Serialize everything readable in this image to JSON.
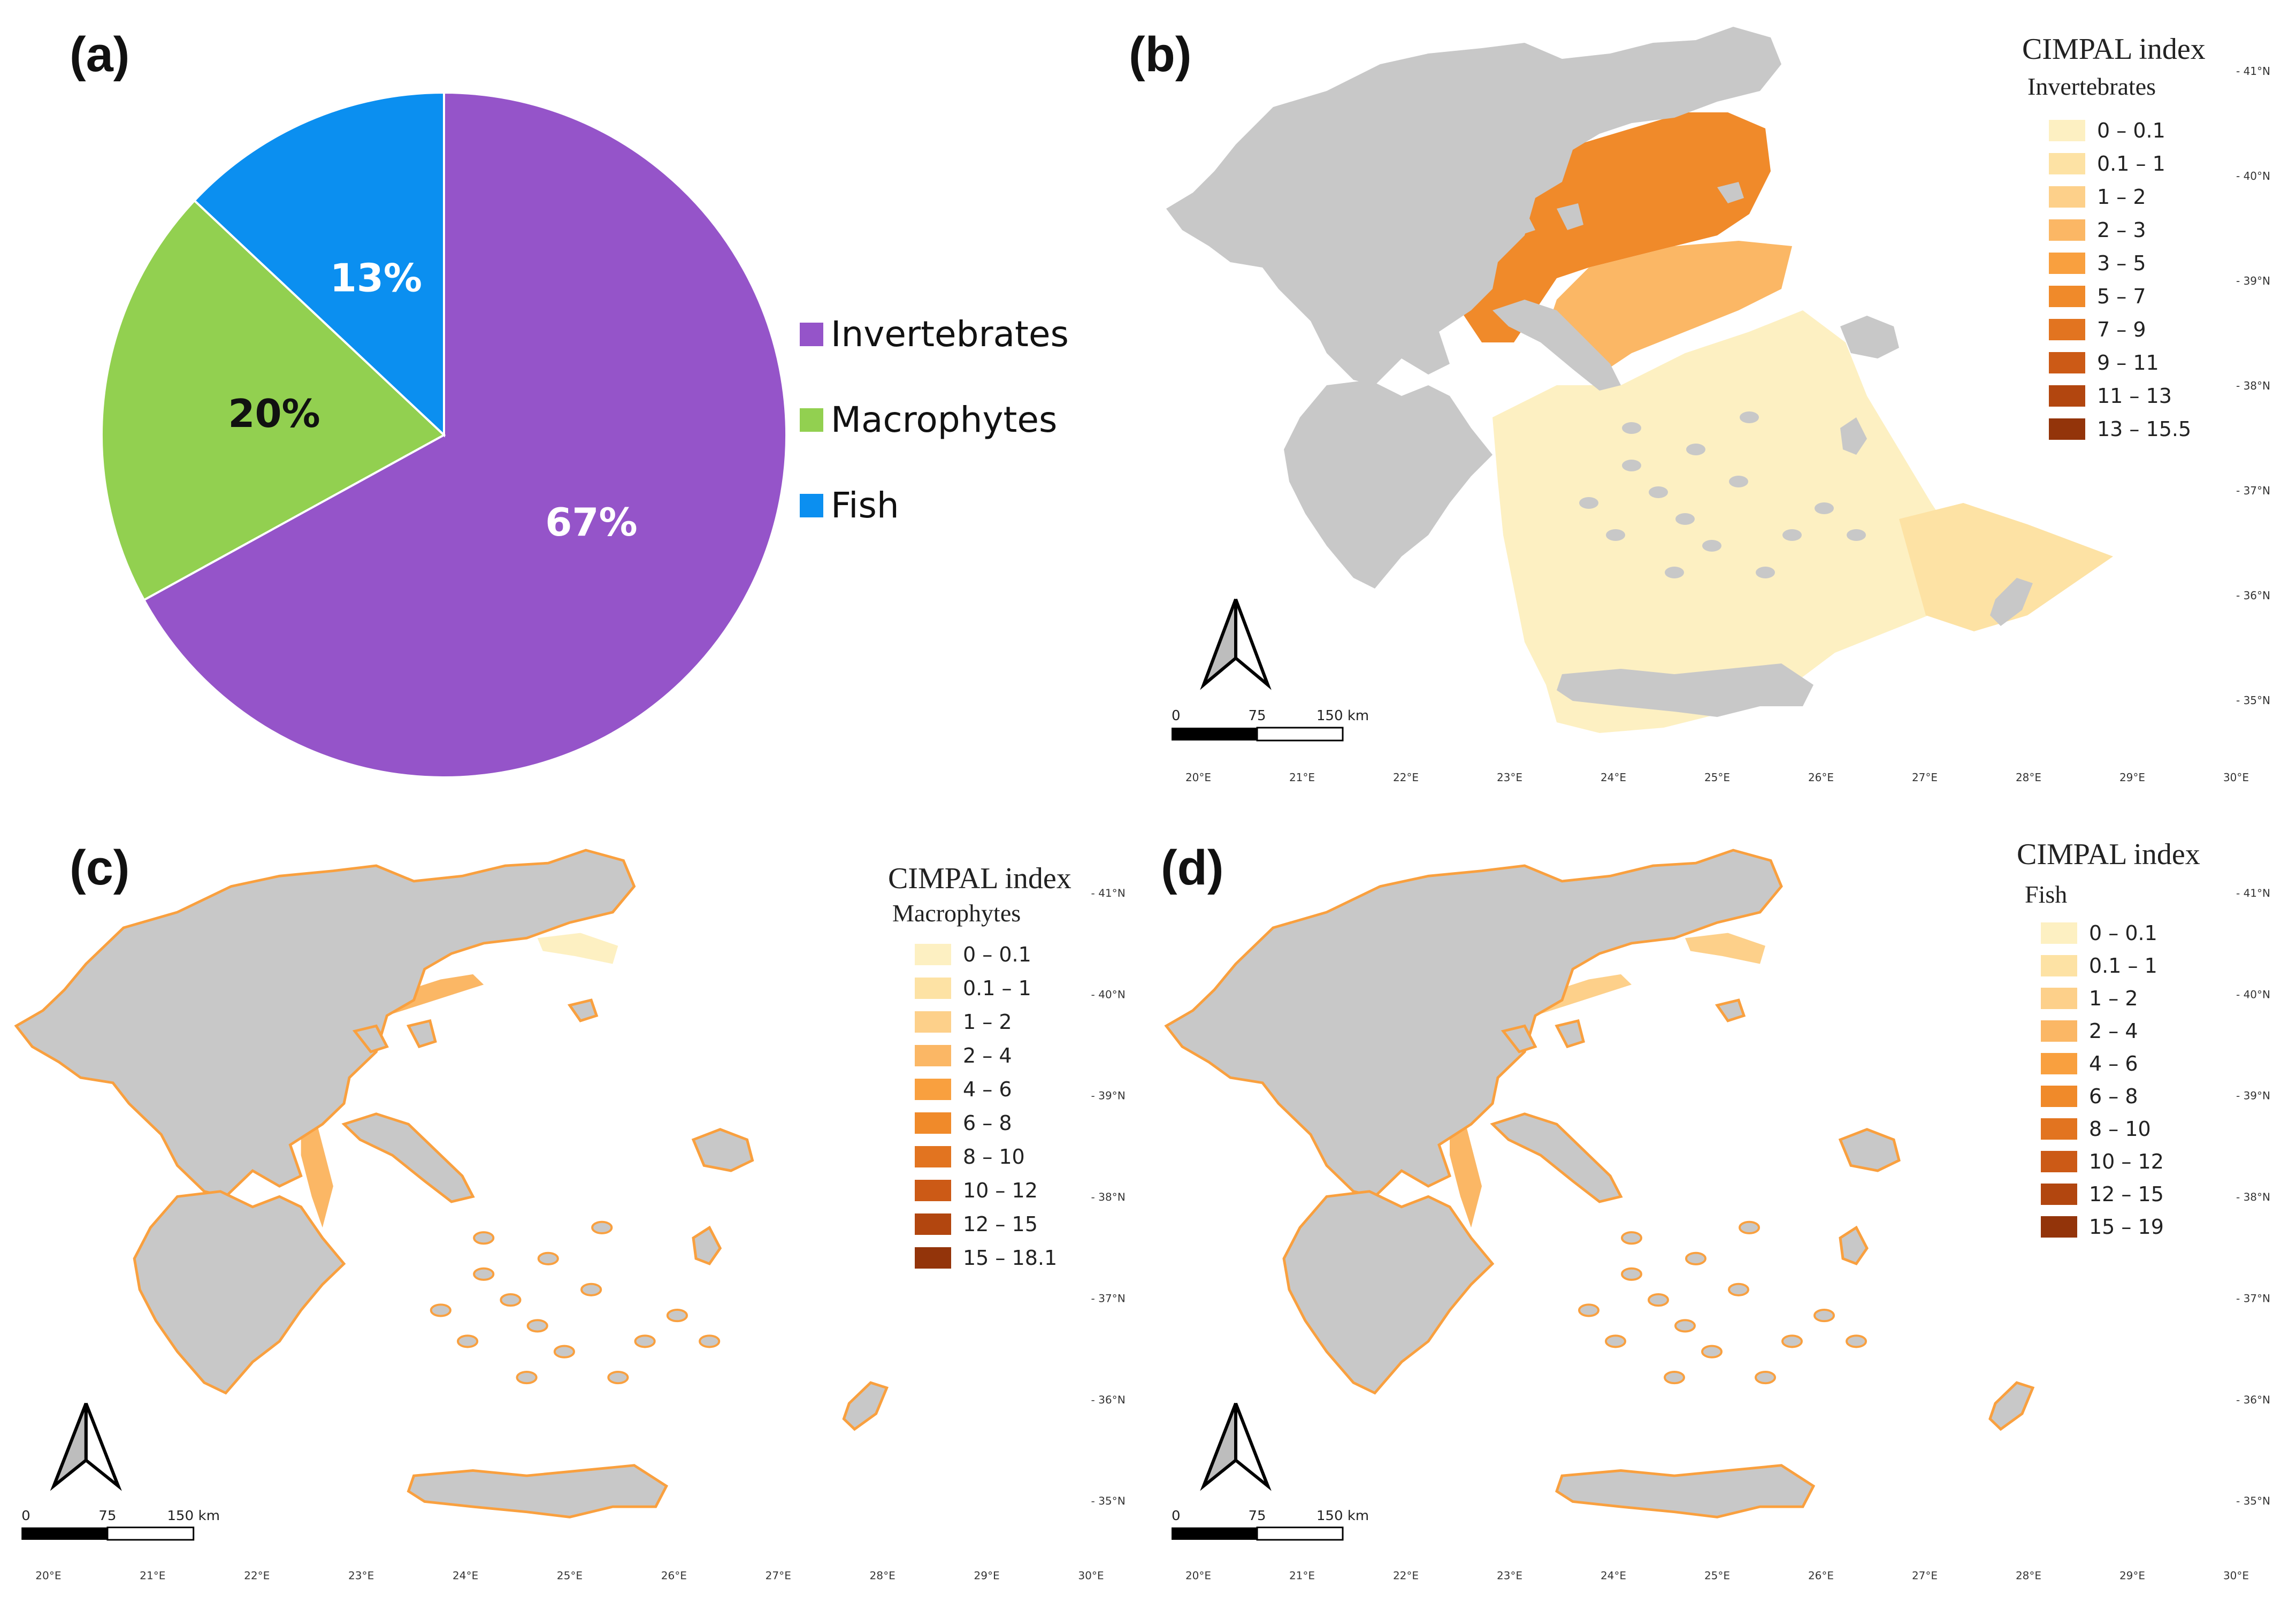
{
  "panels": {
    "a": {
      "label": "(a)"
    },
    "b": {
      "label": "(b)"
    },
    "c": {
      "label": "(c)"
    },
    "d": {
      "label": "(d)"
    }
  },
  "chart_data": {
    "type": "pie",
    "categories": [
      "Invertebrates",
      "Macrophytes",
      "Fish"
    ],
    "values": [
      67,
      20,
      13
    ],
    "data_labels": [
      "67%",
      "20%",
      "13%"
    ],
    "colors": [
      "#9554c9",
      "#92d050",
      "#0b8ff0"
    ],
    "legend_position": "right"
  },
  "maps": {
    "b": {
      "title": "CIMPAL index",
      "subtitle": "Invertebrates",
      "legend": [
        {
          "label": "0 – 0.1",
          "color": "#fdf0c2"
        },
        {
          "label": "0.1 – 1",
          "color": "#fde2a4"
        },
        {
          "label": "1 – 2",
          "color": "#fdd08a"
        },
        {
          "label": "2 – 3",
          "color": "#fbb765"
        },
        {
          "label": "3 – 5",
          "color": "#f9a03f"
        },
        {
          "label": "5 – 7",
          "color": "#f08a2a"
        },
        {
          "label": "7 – 9",
          "color": "#e27420"
        },
        {
          "label": "9 – 11",
          "color": "#cc5a16"
        },
        {
          "label": "11 – 13",
          "color": "#b2460f"
        },
        {
          "label": "13 – 15.5",
          "color": "#93340a"
        }
      ]
    },
    "c": {
      "title": "CIMPAL index",
      "subtitle": "Macrophytes",
      "legend": [
        {
          "label": "0 – 0.1",
          "color": "#fdf0c2"
        },
        {
          "label": "0.1 – 1",
          "color": "#fde2a4"
        },
        {
          "label": "1 – 2",
          "color": "#fdd08a"
        },
        {
          "label": "2 – 4",
          "color": "#fbb765"
        },
        {
          "label": "4 – 6",
          "color": "#f9a03f"
        },
        {
          "label": "6 – 8",
          "color": "#f08a2a"
        },
        {
          "label": "8 – 10",
          "color": "#e27420"
        },
        {
          "label": "10 – 12",
          "color": "#cc5a16"
        },
        {
          "label": "12 – 15",
          "color": "#b2460f"
        },
        {
          "label": "15 – 18.1",
          "color": "#93340a"
        }
      ]
    },
    "d": {
      "title": "CIMPAL index",
      "subtitle": "Fish",
      "legend": [
        {
          "label": "0 – 0.1",
          "color": "#fdf0c2"
        },
        {
          "label": "0.1 – 1",
          "color": "#fde2a4"
        },
        {
          "label": "1 – 2",
          "color": "#fdd08a"
        },
        {
          "label": "2 – 4",
          "color": "#fbb765"
        },
        {
          "label": "4 – 6",
          "color": "#f9a03f"
        },
        {
          "label": "6 – 8",
          "color": "#f08a2a"
        },
        {
          "label": "8 – 10",
          "color": "#e27420"
        },
        {
          "label": "10 – 12",
          "color": "#cc5a16"
        },
        {
          "label": "12 – 15",
          "color": "#b2460f"
        },
        {
          "label": "15 – 19",
          "color": "#93340a"
        }
      ]
    }
  },
  "map_common": {
    "longitude_labels": [
      "20°E",
      "21°E",
      "22°E",
      "23°E",
      "24°E",
      "25°E",
      "26°E",
      "27°E",
      "28°E",
      "29°E",
      "30°E"
    ],
    "latitude_labels": [
      "41°N",
      "40°N",
      "39°N",
      "38°N",
      "37°N",
      "36°N",
      "35°N"
    ],
    "scale_labels": [
      "0",
      "75",
      "150 km"
    ],
    "land_color": "#c8c8c8",
    "north_arrow_icon": "north-arrow-icon"
  }
}
